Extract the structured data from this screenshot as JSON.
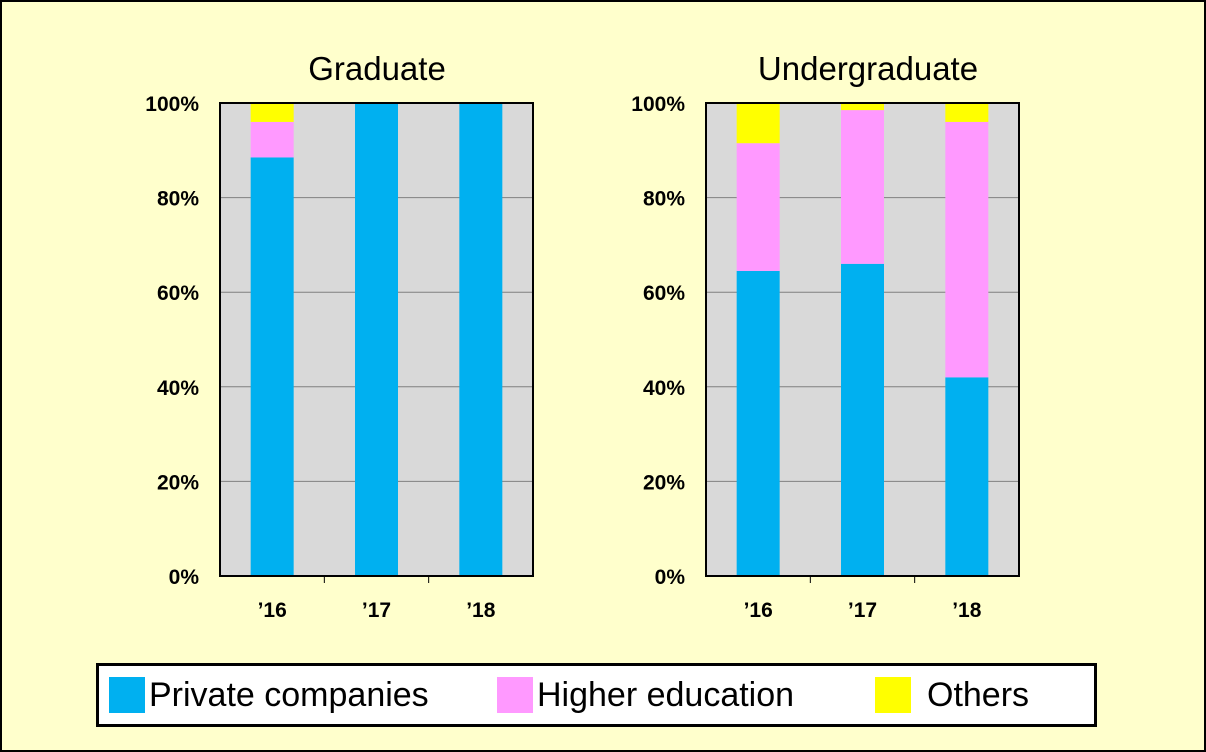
{
  "colors": {
    "background": "#ffffcc",
    "plot_area": "#d9d9d9",
    "grid": "#808080",
    "private_companies": "#00b0f0",
    "higher_education": "#ff99ff",
    "others": "#ffff00"
  },
  "legend": {
    "items": [
      {
        "label": "Private companies",
        "color": "#00b0f0"
      },
      {
        "label": "Higher education",
        "color": "#ff99ff"
      },
      {
        "label": "Others",
        "color": "#ffff00"
      }
    ]
  },
  "chart_data": [
    {
      "type": "bar",
      "stacked": true,
      "title": "Graduate",
      "categories": [
        "’16",
        "’17",
        "’18"
      ],
      "series": [
        {
          "name": "Private companies",
          "values": [
            88.5,
            100,
            100
          ]
        },
        {
          "name": "Higher education",
          "values": [
            7.5,
            0,
            0
          ]
        },
        {
          "name": "Others",
          "values": [
            4,
            0,
            0
          ]
        }
      ],
      "ylim": [
        0,
        100
      ],
      "yticks": [
        "0%",
        "20%",
        "40%",
        "60%",
        "80%",
        "100%"
      ],
      "grid": true,
      "legend_position": "bottom"
    },
    {
      "type": "bar",
      "stacked": true,
      "title": "Undergraduate",
      "categories": [
        "’16",
        "’17",
        "’18"
      ],
      "series": [
        {
          "name": "Private companies",
          "values": [
            64.5,
            66,
            42
          ]
        },
        {
          "name": "Higher education",
          "values": [
            27,
            32.5,
            54
          ]
        },
        {
          "name": "Others",
          "values": [
            8.5,
            1.5,
            4
          ]
        }
      ],
      "ylim": [
        0,
        100
      ],
      "yticks": [
        "0%",
        "20%",
        "40%",
        "60%",
        "80%",
        "100%"
      ],
      "grid": true,
      "legend_position": "bottom"
    }
  ]
}
